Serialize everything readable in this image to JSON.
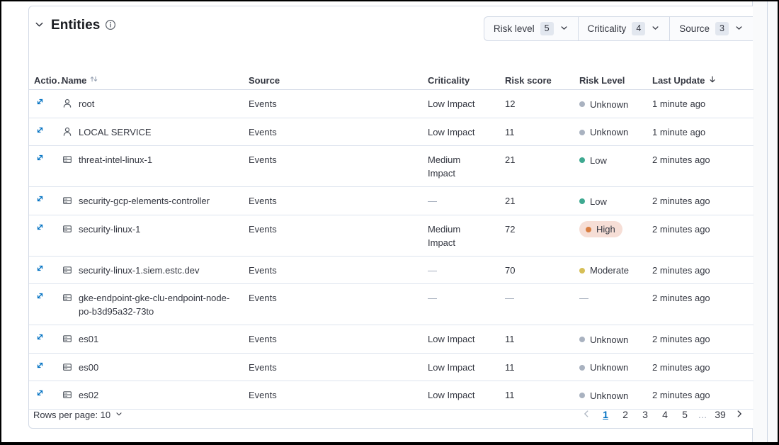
{
  "colors": {
    "link": "#0071c2",
    "panel_border": "#d3dae6",
    "row_border": "#dde4ee",
    "text": "#343741",
    "subdued": "#98a2b3",
    "risk_unknown": "#a9b2c0",
    "risk_low": "#3fa991",
    "risk_moderate": "#d6bf57",
    "risk_high": "#d97e42",
    "risk_high_bg": "#f6ded6"
  },
  "panel": {
    "title": "Entities"
  },
  "filters": [
    {
      "label": "Risk level",
      "count": "5"
    },
    {
      "label": "Criticality",
      "count": "4"
    },
    {
      "label": "Source",
      "count": "3"
    }
  ],
  "table": {
    "headers": {
      "actions": "Actio…",
      "name": "Name",
      "source": "Source",
      "criticality": "Criticality",
      "risk_score": "Risk score",
      "risk_level": "Risk Level",
      "last_update": "Last Update"
    },
    "sort": {
      "name": "sortable",
      "last_update": "descending"
    },
    "rows": [
      {
        "icon": "user",
        "name": "root",
        "source": "Events",
        "criticality": "Low Impact",
        "risk_score": "12",
        "risk_level": "Unknown",
        "level_key": "unknown",
        "last_update": "1 minute ago",
        "tall": false
      },
      {
        "icon": "user",
        "name": "LOCAL SERVICE",
        "source": "Events",
        "criticality": "Low Impact",
        "risk_score": "11",
        "risk_level": "Unknown",
        "level_key": "unknown",
        "last_update": "1 minute ago",
        "tall": false
      },
      {
        "icon": "host",
        "name": "threat-intel-linux-1",
        "source": "Events",
        "criticality": "Medium Impact",
        "risk_score": "21",
        "risk_level": "Low",
        "level_key": "low",
        "last_update": "2 minutes ago",
        "tall": true
      },
      {
        "icon": "host",
        "name": "security-gcp-elements-controller",
        "source": "Events",
        "criticality": "—",
        "risk_score": "21",
        "risk_level": "Low",
        "level_key": "low",
        "last_update": "2 minutes ago",
        "tall": false
      },
      {
        "icon": "host",
        "name": "security-linux-1",
        "source": "Events",
        "criticality": "Medium Impact",
        "risk_score": "72",
        "risk_level": "High",
        "level_key": "high",
        "last_update": "2 minutes ago",
        "tall": true
      },
      {
        "icon": "host",
        "name": "security-linux-1.siem.estc.dev",
        "source": "Events",
        "criticality": "—",
        "risk_score": "70",
        "risk_level": "Moderate",
        "level_key": "moderate",
        "last_update": "2 minutes ago",
        "tall": false
      },
      {
        "icon": "host",
        "name": "gke-endpoint-gke-clu-endpoint-node-po-b3d95a32-73to",
        "source": "Events",
        "criticality": "—",
        "risk_score": "—",
        "risk_level": "—",
        "level_key": "none",
        "last_update": "2 minutes ago",
        "tall": true
      },
      {
        "icon": "host",
        "name": "es01",
        "source": "Events",
        "criticality": "Low Impact",
        "risk_score": "11",
        "risk_level": "Unknown",
        "level_key": "unknown",
        "last_update": "2 minutes ago",
        "tall": false
      },
      {
        "icon": "host",
        "name": "es00",
        "source": "Events",
        "criticality": "Low Impact",
        "risk_score": "11",
        "risk_level": "Unknown",
        "level_key": "unknown",
        "last_update": "2 minutes ago",
        "tall": false
      },
      {
        "icon": "host",
        "name": "es02",
        "source": "Events",
        "criticality": "Low Impact",
        "risk_score": "11",
        "risk_level": "Unknown",
        "level_key": "unknown",
        "last_update": "2 minutes ago",
        "tall": false
      }
    ]
  },
  "footer": {
    "rows_per_page": "Rows per page: 10",
    "pages": [
      "1",
      "2",
      "3",
      "4",
      "5",
      "…",
      "39"
    ],
    "current_page": "1"
  }
}
